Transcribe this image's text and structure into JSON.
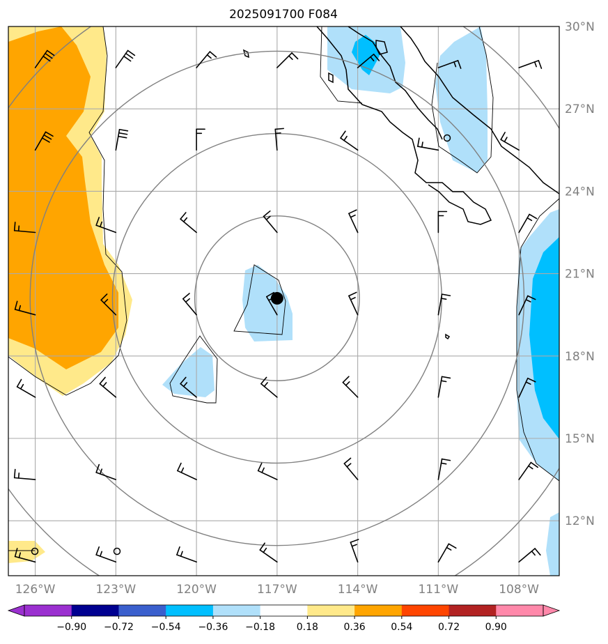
{
  "title": "2025091700 F084",
  "map": {
    "lon_range": [
      -127,
      -106.5
    ],
    "lat_range": [
      10,
      30
    ],
    "lon_ticks": [
      {
        "value": -126,
        "label": "126°W"
      },
      {
        "value": -123,
        "label": "123°W"
      },
      {
        "value": -120,
        "label": "120°W"
      },
      {
        "value": -117,
        "label": "117°W"
      },
      {
        "value": -114,
        "label": "114°W"
      },
      {
        "value": -111,
        "label": "111°W"
      },
      {
        "value": -108,
        "label": "108°W"
      }
    ],
    "lat_ticks": [
      {
        "value": 30,
        "label": "30°N"
      },
      {
        "value": 27,
        "label": "27°N"
      },
      {
        "value": 24,
        "label": "24°N"
      },
      {
        "value": 21,
        "label": "21°N"
      },
      {
        "value": 18,
        "label": "18°N"
      },
      {
        "value": 15,
        "label": "15°N"
      },
      {
        "value": 12,
        "label": "12°N"
      }
    ],
    "storm_center": {
      "lon": -117,
      "lat": 20.1
    },
    "range_rings_deg": [
      3,
      6,
      9,
      12
    ]
  },
  "colorbar": {
    "ticks": [
      "−0.90",
      "−0.72",
      "−0.54",
      "−0.36",
      "−0.18",
      "0.18",
      "0.36",
      "0.54",
      "0.72",
      "0.90"
    ],
    "colors": {
      "below_min": "#9b30d0",
      "bins": [
        "#9b30d0",
        "#000090",
        "#3a5fcd",
        "#00bfff",
        "#b0e0fa",
        "#ffffff",
        "#ffe98a",
        "#ffa500",
        "#ff4500",
        "#b22222",
        "#ff88aa"
      ],
      "above_max": "#ff88aa"
    }
  },
  "colors": {
    "light_blue": "#b0e0fa",
    "blue": "#00bfff",
    "light_yellow": "#ffe98a",
    "orange": "#ffa500",
    "grid": "#aaaaaa",
    "ring": "#808080"
  }
}
